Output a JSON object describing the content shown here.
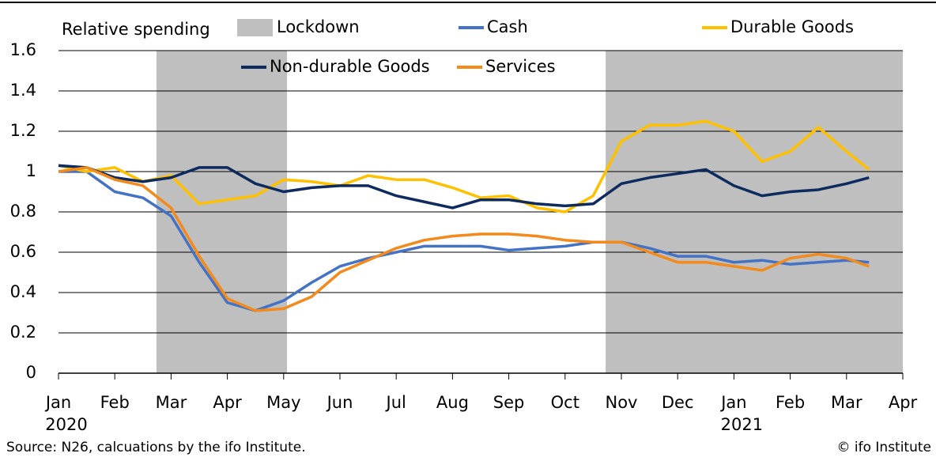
{
  "chart_data": {
    "type": "line",
    "y_label": "Relative spending",
    "source": "Source: N26, calcuations by the ifo Institute.",
    "credit": "© ifo Institute",
    "xlim": [
      0,
      15
    ],
    "ylim": [
      0,
      1.6
    ],
    "yticks": [
      0,
      0.2,
      0.4,
      0.6,
      0.8,
      1,
      1.2,
      1.4,
      1.6
    ],
    "grid": true,
    "xticks": [
      {
        "value": 0,
        "label": "Jan"
      },
      {
        "value": 1,
        "label": "Feb"
      },
      {
        "value": 2,
        "label": "Mar"
      },
      {
        "value": 3,
        "label": "Apr"
      },
      {
        "value": 4,
        "label": "May"
      },
      {
        "value": 5,
        "label": "Jun"
      },
      {
        "value": 6,
        "label": "Jul"
      },
      {
        "value": 7,
        "label": "Aug"
      },
      {
        "value": 8,
        "label": "Sep"
      },
      {
        "value": 9,
        "label": "Oct"
      },
      {
        "value": 10,
        "label": "Nov"
      },
      {
        "value": 11,
        "label": "Dec"
      },
      {
        "value": 12,
        "label": "Jan"
      },
      {
        "value": 13,
        "label": "Feb"
      },
      {
        "value": 14,
        "label": "Mar"
      },
      {
        "value": 15,
        "label": "Apr"
      }
    ],
    "year_labels": [
      {
        "value": 0,
        "label": "2020"
      },
      {
        "value": 12,
        "label": "2021"
      }
    ],
    "lockdown": {
      "name": "Lockdown",
      "color": "#bfbfbf",
      "ranges": [
        [
          1.74,
          4.06
        ],
        [
          9.72,
          15
        ]
      ]
    },
    "x": [
      0,
      0.5,
      1,
      1.5,
      2,
      2.5,
      3,
      3.5,
      4,
      4.5,
      5,
      5.5,
      6,
      6.5,
      7,
      7.5,
      8,
      8.5,
      9,
      9.5,
      10,
      10.5,
      11,
      11.5,
      12,
      12.5,
      13,
      13.5,
      14,
      14.4
    ],
    "series": [
      {
        "name": "Cash",
        "color": "#4472c4",
        "values": [
          1.0,
          1.0,
          0.9,
          0.87,
          0.78,
          0.55,
          0.35,
          0.31,
          0.36,
          0.45,
          0.53,
          0.57,
          0.6,
          0.63,
          0.63,
          0.63,
          0.61,
          0.62,
          0.63,
          0.65,
          0.65,
          0.62,
          0.58,
          0.58,
          0.55,
          0.56,
          0.54,
          0.55,
          0.56,
          0.55
        ]
      },
      {
        "name": "Durable Goods",
        "color": "#ffc000",
        "values": [
          1.03,
          1.0,
          1.02,
          0.95,
          0.98,
          0.84,
          0.86,
          0.88,
          0.96,
          0.95,
          0.93,
          0.98,
          0.96,
          0.96,
          0.92,
          0.87,
          0.88,
          0.82,
          0.8,
          0.88,
          1.15,
          1.23,
          1.23,
          1.25,
          1.2,
          1.05,
          1.1,
          1.22,
          1.1,
          1.01
        ]
      },
      {
        "name": "Non-durable Goods",
        "color": "#0d2b5e",
        "values": [
          1.03,
          1.02,
          0.97,
          0.95,
          0.97,
          1.02,
          1.02,
          0.94,
          0.9,
          0.92,
          0.93,
          0.93,
          0.88,
          0.85,
          0.82,
          0.86,
          0.86,
          0.84,
          0.83,
          0.84,
          0.94,
          0.97,
          0.99,
          1.01,
          0.93,
          0.88,
          0.9,
          0.91,
          0.94,
          0.97
        ]
      },
      {
        "name": "Services",
        "color": "#f28a1c",
        "values": [
          1.0,
          1.02,
          0.96,
          0.93,
          0.82,
          0.58,
          0.37,
          0.31,
          0.32,
          0.38,
          0.5,
          0.56,
          0.62,
          0.66,
          0.68,
          0.69,
          0.69,
          0.68,
          0.66,
          0.65,
          0.65,
          0.6,
          0.55,
          0.55,
          0.53,
          0.51,
          0.57,
          0.59,
          0.57,
          0.53
        ]
      }
    ]
  }
}
